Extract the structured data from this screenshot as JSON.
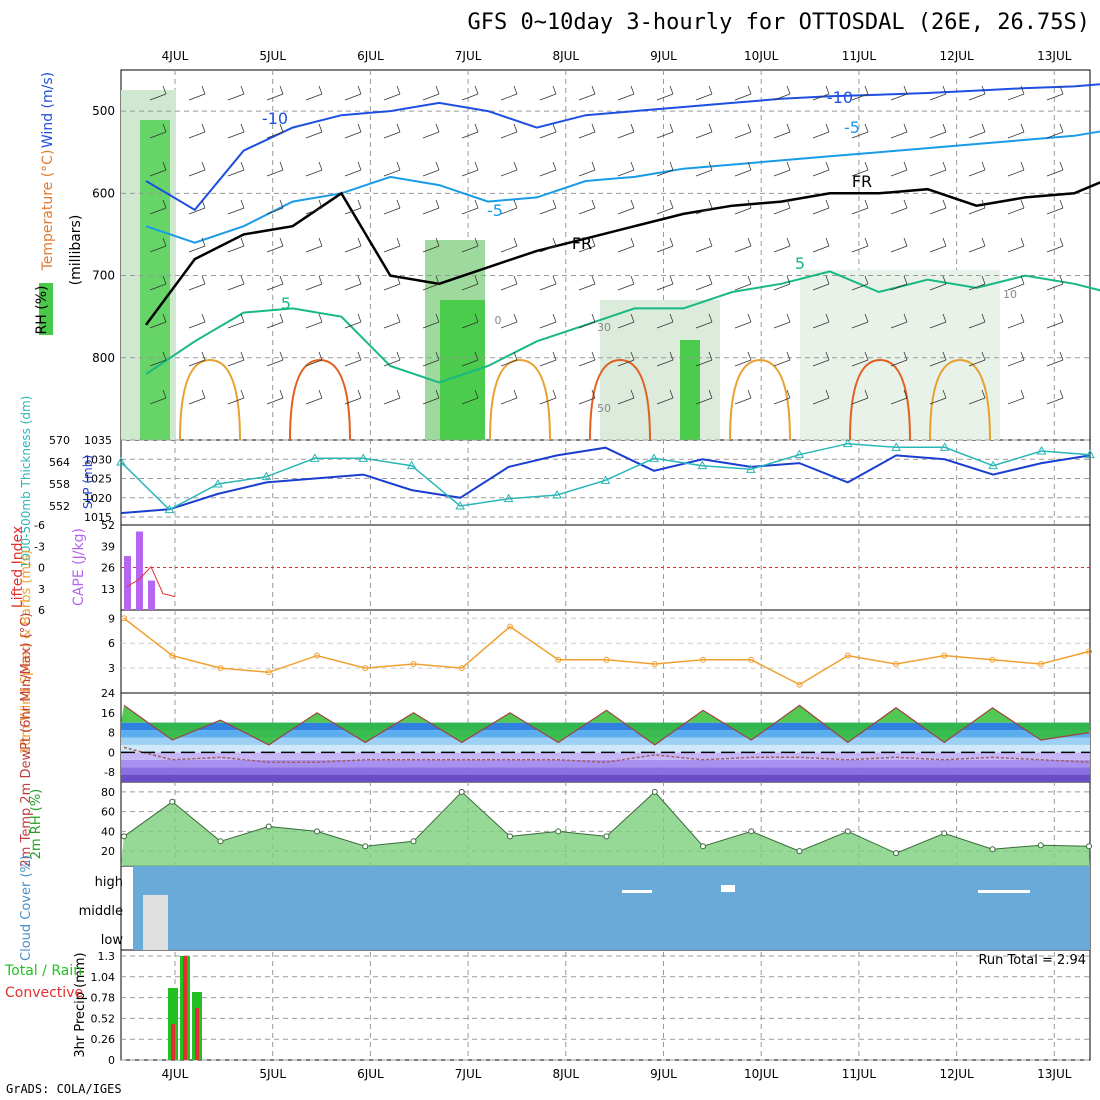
{
  "title": "GFS 0~10day 3-hourly for OTTOSDAL (26E, 26.75S)",
  "footer": "GrADS: COLA/IGES",
  "dates": [
    "4JUL",
    "5JUL",
    "6JUL",
    "7JUL",
    "8JUL",
    "9JUL",
    "10JUL",
    "11JUL",
    "12JUL",
    "13JUL"
  ],
  "colors": {
    "temp_m10": "#1f4fe0",
    "temp_m5": "#1a9be8",
    "temp_5": "#16b884",
    "freezing": "#000000",
    "warm": "#e8a030",
    "hot": "#e06020",
    "hotter": "#d01080",
    "rh_green": "#38c838",
    "slp": "#1a3ed0",
    "thickness": "#29b6b6",
    "cape": "#b565f0",
    "lifted": "#e03030",
    "wind": "#f0a030",
    "cloud_bg": "#6aaad8",
    "precip_total": "#22c022",
    "precip_conv": "#e03030"
  },
  "chart_data": [
    {
      "type": "line",
      "name": "upper-air",
      "ylabel": "(millibars)",
      "side_labels": [
        "RH (%)",
        "Temperature (°C)",
        "Wind (m/s)"
      ],
      "yticks": [
        500,
        600,
        700,
        800
      ],
      "ylim": [
        900,
        450
      ],
      "contour_labels": [
        "-10",
        "-10",
        "-5",
        "-5",
        "FR",
        "FR",
        "5",
        "5",
        "10",
        "0",
        "30",
        "50"
      ],
      "series": [
        {
          "name": "-10",
          "x": [
            0,
            0.5,
            1,
            1.5,
            2,
            2.5,
            3,
            3.5,
            4,
            4.5,
            5,
            5.5,
            6,
            6.5,
            7,
            7.5,
            8,
            8.5,
            9,
            9.5,
            10
          ],
          "values": [
            585,
            620,
            548,
            520,
            505,
            500,
            490,
            500,
            520,
            505,
            500,
            495,
            490,
            485,
            482,
            480,
            478,
            475,
            472,
            470,
            465
          ]
        },
        {
          "name": "-5",
          "x": [
            0,
            0.5,
            1,
            1.5,
            2,
            2.5,
            3,
            3.5,
            4,
            4.5,
            5,
            5.5,
            6,
            6.5,
            7,
            7.5,
            8,
            8.5,
            9,
            9.5,
            10
          ],
          "values": [
            640,
            660,
            640,
            610,
            600,
            580,
            590,
            610,
            605,
            585,
            580,
            570,
            565,
            560,
            555,
            550,
            545,
            540,
            535,
            530,
            520
          ]
        },
        {
          "name": "FR",
          "x": [
            0,
            0.5,
            1,
            1.5,
            2,
            2.5,
            3,
            3.5,
            4,
            4.5,
            5,
            5.5,
            6,
            6.5,
            7,
            7.5,
            8,
            8.5,
            9,
            9.5,
            10
          ],
          "values": [
            760,
            680,
            650,
            640,
            600,
            700,
            710,
            690,
            670,
            655,
            640,
            625,
            615,
            610,
            600,
            600,
            595,
            615,
            605,
            600,
            575
          ]
        },
        {
          "name": "5",
          "x": [
            0,
            0.5,
            1,
            1.5,
            2,
            2.5,
            3,
            3.5,
            4,
            4.5,
            5,
            5.5,
            6,
            6.5,
            7,
            7.5,
            8,
            8.5,
            9,
            9.5,
            10
          ],
          "values": [
            820,
            780,
            745,
            740,
            750,
            810,
            830,
            810,
            780,
            760,
            740,
            740,
            720,
            710,
            695,
            720,
            705,
            715,
            700,
            710,
            725
          ]
        }
      ]
    },
    {
      "type": "line",
      "name": "slp-thickness",
      "ylabel_left": "1000-500mb Thickness (dm)",
      "ylabel_right": "SLP (mb)",
      "thickness_ticks": [
        552,
        558,
        564,
        570
      ],
      "slp_ticks": [
        1015,
        1020,
        1025,
        1030,
        1035
      ],
      "x": [
        0,
        0.5,
        1,
        1.5,
        2,
        2.5,
        3,
        3.5,
        4,
        4.5,
        5,
        5.5,
        6,
        6.5,
        7,
        7.5,
        8,
        8.5,
        9,
        9.5,
        10
      ],
      "series": [
        {
          "name": "SLP (mb)",
          "values": [
            1016,
            1017,
            1021,
            1024,
            1025,
            1026,
            1022,
            1020,
            1028,
            1031,
            1033,
            1027,
            1030,
            1028,
            1029,
            1024,
            1031,
            1030,
            1026,
            1029,
            1031
          ]
        },
        {
          "name": "1000-500mb Thickness (dm)",
          "values": [
            564,
            551,
            558,
            560,
            565,
            565,
            563,
            552,
            554,
            555,
            559,
            565,
            563,
            562,
            566,
            569,
            568,
            568,
            563,
            567,
            566
          ]
        }
      ]
    },
    {
      "type": "bar",
      "name": "cape-lifted",
      "ylabel_left": "Lifted Index",
      "ylabel_right": "CAPE (J/kg)",
      "li_ticks": [
        -6,
        -3,
        0,
        3,
        6
      ],
      "cape_ticks": [
        13,
        26,
        39,
        52
      ],
      "x": [
        0,
        0.125,
        0.25,
        0.375,
        0.5
      ],
      "cape": [
        33,
        48,
        18,
        0,
        0
      ],
      "lifted_index": [
        2.7,
        1.7,
        -0.1,
        3.7,
        4.1
      ]
    },
    {
      "type": "line",
      "name": "wind10m",
      "ylabel": "10m Wind Speed & Barbs (m/s)",
      "yticks": [
        3,
        6,
        9
      ],
      "x": [
        0,
        0.5,
        1,
        1.5,
        2,
        2.5,
        3,
        3.5,
        4,
        4.5,
        5,
        5.5,
        6,
        6.5,
        7,
        7.5,
        8,
        8.5,
        9,
        9.5,
        10
      ],
      "values": [
        9,
        4.5,
        3,
        2.5,
        4.5,
        3,
        3.5,
        3,
        8,
        4,
        4,
        3.5,
        4,
        4,
        1,
        4.5,
        3.5,
        4.5,
        4,
        3.5,
        5
      ]
    },
    {
      "type": "area",
      "name": "temp2m",
      "ylabel": "2m Temp 2m DewPt (6hr Min/Max) (°C)",
      "yticks": [
        -8,
        0,
        8,
        16,
        24
      ],
      "x": [
        0,
        0.5,
        1,
        1.5,
        2,
        2.5,
        3,
        3.5,
        4,
        4.5,
        5,
        5.5,
        6,
        6.5,
        7,
        7.5,
        8,
        8.5,
        9,
        9.5,
        10
      ],
      "temperature": [
        19,
        5,
        13,
        3,
        16,
        4,
        16,
        4,
        16,
        4,
        17,
        3,
        17,
        5,
        19,
        4,
        18,
        4,
        18,
        5,
        8
      ],
      "dewpoint": [
        2,
        -3,
        -2,
        -4,
        -4,
        -3,
        -3,
        -3,
        -3,
        -3,
        -4,
        -1,
        -3,
        -2,
        -2,
        -3,
        -2,
        -3,
        -2,
        -3,
        -4
      ]
    },
    {
      "type": "area",
      "name": "rh2m",
      "ylabel": "2m RH (%)",
      "yticks": [
        20,
        40,
        60,
        80
      ],
      "x": [
        0,
        0.5,
        1,
        1.5,
        2,
        2.5,
        3,
        3.5,
        4,
        4.5,
        5,
        5.5,
        6,
        6.5,
        7,
        7.5,
        8,
        8.5,
        9,
        9.5,
        10
      ],
      "values": [
        35,
        70,
        30,
        45,
        40,
        25,
        30,
        80,
        35,
        40,
        35,
        80,
        25,
        40,
        20,
        40,
        18,
        38,
        22,
        26,
        25
      ]
    },
    {
      "type": "bar",
      "name": "cloud",
      "ylabel": "Cloud Cover (%)",
      "levels": [
        "high",
        "middle",
        "low"
      ]
    },
    {
      "type": "bar",
      "name": "precip",
      "ylabel": "3hr Precip (mm)",
      "side_labels": [
        "Total / Rain",
        "Convective"
      ],
      "yticks": [
        0,
        0.26,
        0.52,
        0.78,
        1.04,
        1.3
      ],
      "run_total": "Run Total = 2.94",
      "x": [
        0.25,
        0.375,
        0.5
      ],
      "total": [
        0.9,
        1.3,
        0.85
      ],
      "convective": [
        0.45,
        1.3,
        0.65
      ]
    }
  ]
}
